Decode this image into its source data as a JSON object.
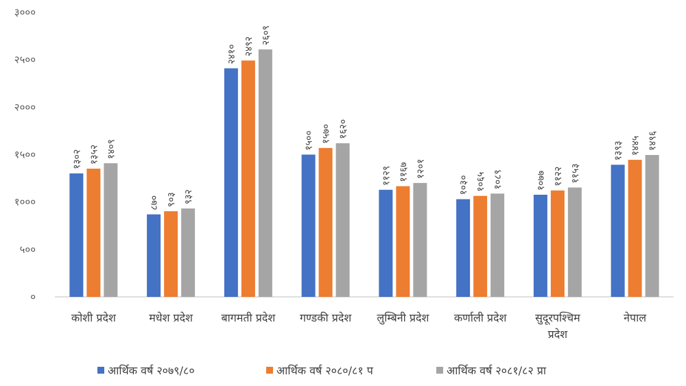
{
  "chart_data": {
    "type": "bar",
    "categories": [
      "कोशी प्रदेश",
      "मधेश प्रदेश",
      "बागमती प्रदेश",
      "गण्डकी प्रदेश",
      "लुम्बिनी प्रदेश",
      "कर्णाली प्रदेश",
      "सुदूरपश्चिम प्रदेश",
      "नेपाल"
    ],
    "categories_display": [
      [
        "कोशी प्रदेश"
      ],
      [
        "मधेश प्रदेश"
      ],
      [
        "बागमती प्रदेश"
      ],
      [
        "गण्डकी प्रदेश"
      ],
      [
        "लुम्बिनी प्रदेश"
      ],
      [
        "कर्णाली प्रदेश"
      ],
      [
        "सुदूरपश्चिम",
        "प्रदेश"
      ],
      [
        "नेपाल"
      ]
    ],
    "series": [
      {
        "name": "आर्थिक वर्ष २०७९/८०",
        "color": "#4472c4",
        "values": [
          1302,
          870,
          2410,
          1500,
          1129,
          1030,
          1077,
          1393
        ],
        "labels": [
          "१३०२",
          "८७०",
          "२४१०",
          "१५००",
          "११२९",
          "१०३०",
          "१०७७",
          "१३९३"
        ]
      },
      {
        "name": "आर्थिक वर्ष २०८०/८१ प",
        "color": "#ed7d31",
        "values": [
          1352,
          903,
          2492,
          1570,
          1167,
          1065,
          1122,
          1445
        ],
        "labels": [
          "१३५२",
          "९०३",
          "२४९२",
          "१५७०",
          "११६७",
          "१०६५",
          "११२२",
          "१४४५"
        ]
      },
      {
        "name": "आर्थिक वर्ष २०८१/८२ प्रा",
        "color": "#a5a5a5",
        "values": [
          1409,
          932,
          2609,
          1620,
          1201,
          1089,
          1153,
          1496
        ],
        "labels": [
          "१४०९",
          "९३२",
          "२६०९",
          "१६२०",
          "१२०१",
          "१०८९",
          "११५३",
          "१४९६"
        ]
      }
    ],
    "yticks": [
      0,
      500,
      1000,
      1500,
      2000,
      2500,
      3000
    ],
    "ytick_labels": [
      "०",
      "५००",
      "१०००",
      "१५००",
      "२०००",
      "२५००",
      "३०००"
    ],
    "ylim": [
      0,
      3000
    ],
    "grid": false,
    "legend_position": "bottom",
    "title": "",
    "xlabel": "",
    "ylabel": ""
  }
}
